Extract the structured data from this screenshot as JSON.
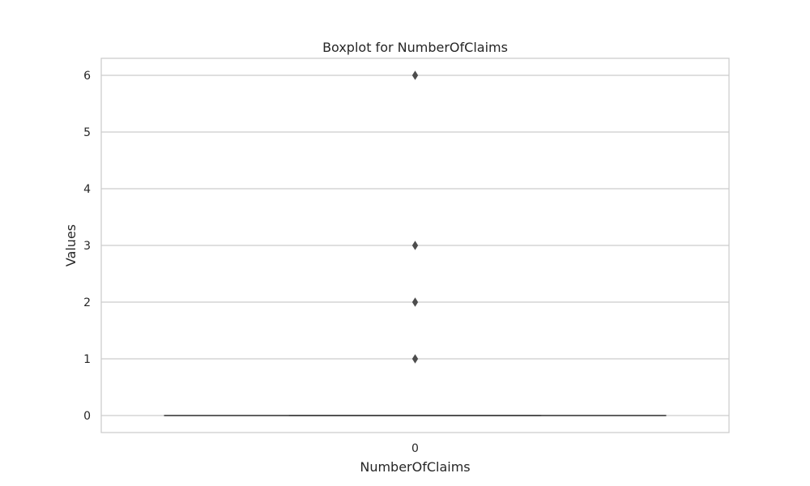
{
  "chart_data": {
    "type": "boxplot",
    "title": "Boxplot for NumberOfClaims",
    "xlabel": "NumberOfClaims",
    "ylabel": "Values",
    "categories": [
      "0"
    ],
    "yticks": [
      0,
      1,
      2,
      3,
      4,
      5,
      6
    ],
    "ylim": [
      -0.3,
      6.3
    ],
    "grid": true,
    "colors": {
      "box_line": "#4d4d4d",
      "grid": "#cccccc",
      "frame": "#cccccc",
      "outlier": "#4d4d4d"
    },
    "series": [
      {
        "category": "0",
        "min": 0,
        "q1": 0,
        "median": 0,
        "q3": 0,
        "max": 0,
        "outliers": [
          1,
          2,
          3,
          6
        ]
      }
    ]
  }
}
